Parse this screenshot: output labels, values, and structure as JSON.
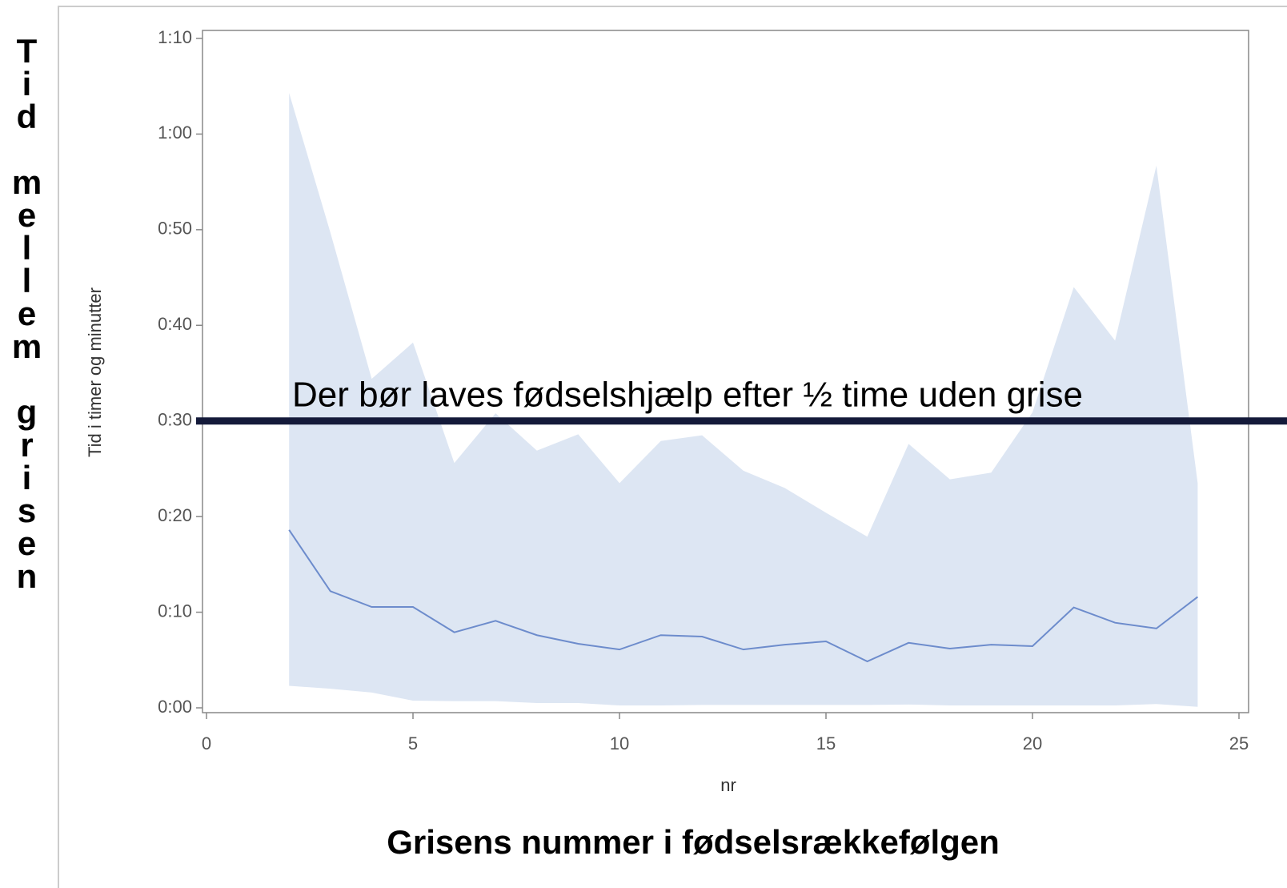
{
  "chart_data": {
    "type": "line",
    "side_title": "Tid mellem grisen",
    "title": "Grisens nummer i fødselsrækkefølgen",
    "xlabel": "nr",
    "ylabel": "Tid i timer og minutter",
    "x": [
      2,
      3,
      4,
      5,
      6,
      7,
      8,
      9,
      10,
      11,
      12,
      13,
      14,
      15,
      16,
      17,
      18,
      19,
      20,
      21,
      22,
      23,
      24
    ],
    "line": {
      "color": "#6d8ccc",
      "values": [
        18.6,
        12.2,
        10.55,
        10.55,
        7.9,
        9.1,
        7.6,
        6.7,
        6.1,
        7.6,
        7.45,
        6.1,
        6.6,
        6.95,
        4.85,
        6.8,
        6.2,
        6.6,
        6.45,
        10.5,
        8.9,
        8.3,
        11.6
      ]
    },
    "band": {
      "color": "#dde6f3",
      "upper": [
        64.3,
        49.7,
        34.4,
        38.2,
        25.6,
        30.8,
        26.9,
        28.6,
        23.5,
        27.9,
        28.5,
        24.8,
        23.0,
        20.4,
        17.9,
        27.6,
        23.9,
        24.6,
        30.9,
        44.0,
        38.4,
        56.7,
        23.5
      ],
      "lower": [
        2.3,
        2.0,
        1.6,
        0.75,
        0.7,
        0.7,
        0.5,
        0.5,
        0.25,
        0.25,
        0.3,
        0.3,
        0.3,
        0.3,
        0.3,
        0.35,
        0.25,
        0.25,
        0.25,
        0.25,
        0.25,
        0.4,
        0.1
      ]
    },
    "reference_line": {
      "value": 30,
      "color": "#141a3a",
      "label": "Der bør laves fødselshjælp efter ½ time uden grise"
    },
    "xlim": [
      0,
      25
    ],
    "xticks": [
      0,
      5,
      10,
      15,
      20,
      25
    ],
    "ylim": [
      0,
      70
    ],
    "yticks": [
      {
        "value": 0,
        "label": "0:00"
      },
      {
        "value": 10,
        "label": "0:10"
      },
      {
        "value": 20,
        "label": "0:20"
      },
      {
        "value": 30,
        "label": "0:30"
      },
      {
        "value": 40,
        "label": "0:40"
      },
      {
        "value": 50,
        "label": "0:50"
      },
      {
        "value": 60,
        "label": "1:00"
      },
      {
        "value": 70,
        "label": "1:10"
      }
    ]
  }
}
